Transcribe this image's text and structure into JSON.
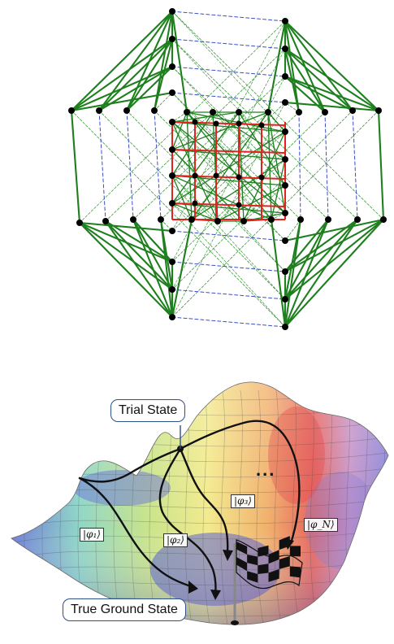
{
  "landscape": {
    "trial_label": "Trial State",
    "ground_label": "True Ground State",
    "ellipsis": "...",
    "paths": [
      "|φ₁⟩",
      "|φ₂⟩",
      "|φ₃⟩",
      "|φ_N⟩"
    ]
  },
  "colors": {
    "solid_edge": "#1e7f1e",
    "dashed_edge": "#3c9a3c",
    "inner_grid": "#e0231e",
    "blue_dash": "#3a4fc4",
    "vertex": "#000000"
  },
  "icons": [
    "checkered-flag-icon"
  ]
}
